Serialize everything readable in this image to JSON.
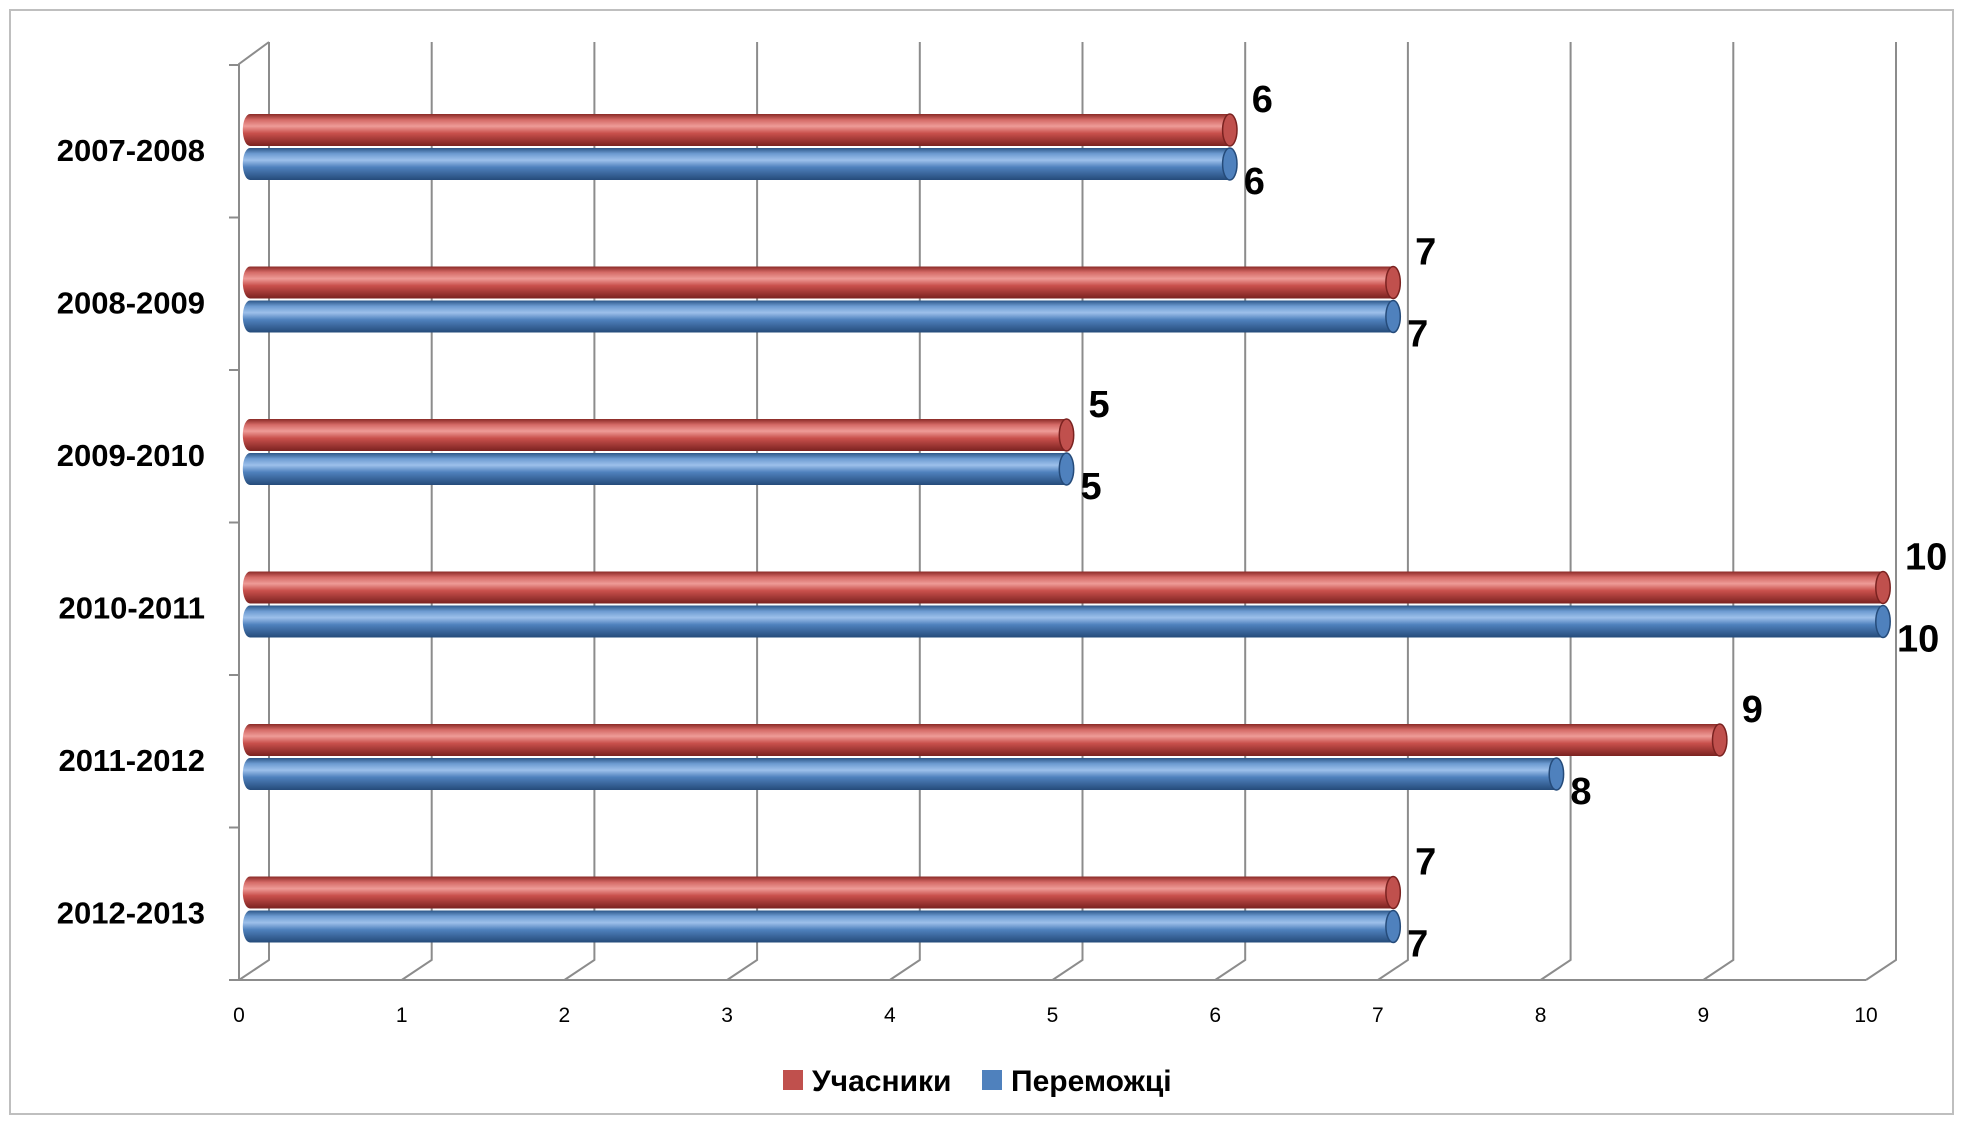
{
  "chart_data": {
    "type": "bar",
    "orientation": "horizontal",
    "categories": [
      "2007-2008",
      "2008-2009",
      "2009-2010",
      "2010-2011",
      "2011-2012",
      "2012-2013"
    ],
    "series": [
      {
        "name": "Учасники",
        "values": [
          6,
          7,
          5,
          10,
          9,
          7
        ],
        "color": "#c0504d"
      },
      {
        "name": "Переможці",
        "values": [
          6,
          7,
          5,
          10,
          8,
          7
        ],
        "color": "#4f81bd"
      }
    ],
    "x_ticks": [
      "0",
      "1",
      "2",
      "3",
      "4",
      "5",
      "6",
      "7",
      "8",
      "9",
      "10"
    ],
    "xlim": [
      0,
      10
    ],
    "grid": true,
    "legend_position": "bottom"
  }
}
